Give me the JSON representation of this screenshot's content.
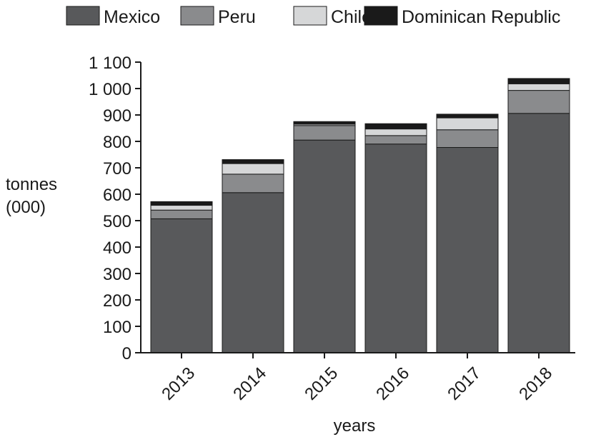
{
  "chart_data": {
    "type": "bar",
    "stacked": true,
    "categories": [
      "2013",
      "2014",
      "2015",
      "2016",
      "2017",
      "2018"
    ],
    "series": [
      {
        "name": "Mexico",
        "color": "#58595b",
        "values": [
          507,
          606,
          805,
          790,
          777,
          906
        ]
      },
      {
        "name": "Peru",
        "color": "#8a8b8d",
        "values": [
          33,
          70,
          55,
          32,
          67,
          87
        ]
      },
      {
        "name": "Chile",
        "color": "#d6d7d8",
        "values": [
          18,
          40,
          5,
          25,
          45,
          25
        ]
      },
      {
        "name": "Dominican Republic",
        "color": "#1a1a1a",
        "values": [
          14,
          15,
          10,
          20,
          14,
          20
        ]
      }
    ],
    "xlabel": "years",
    "ylabel_lines": [
      "tonnes",
      "(000)"
    ],
    "ylim": [
      0,
      1100
    ],
    "yticks": [
      0,
      100,
      200,
      300,
      400,
      500,
      600,
      700,
      800,
      900,
      1000,
      1100
    ],
    "ytick_labels": [
      "0",
      "100",
      "200",
      "300",
      "400",
      "500",
      "600",
      "700",
      "800",
      "900",
      "1 000",
      "1 100"
    ],
    "legend_position": "top",
    "grid": false
  }
}
